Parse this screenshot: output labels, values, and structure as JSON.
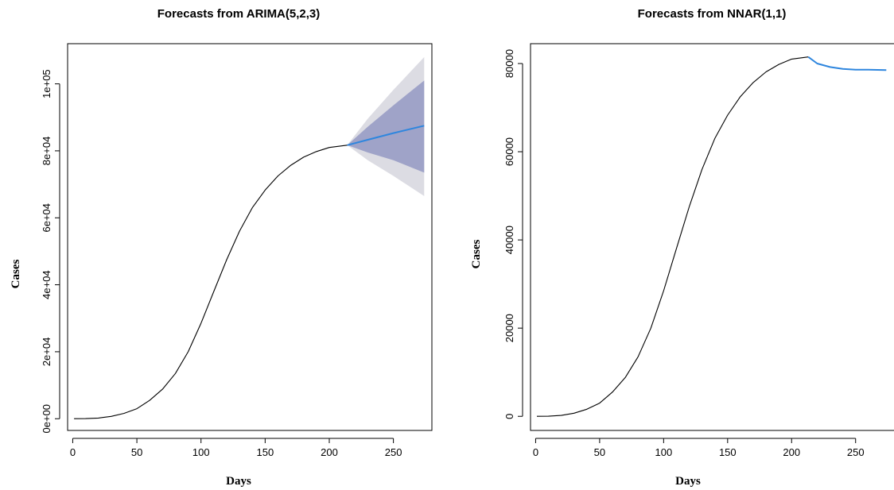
{
  "colors": {
    "history": "#000000",
    "forecast": "#2e86de",
    "pi80": "#9fa3c8",
    "pi95": "#dcdce3"
  },
  "chart_data": [
    {
      "type": "line",
      "title": "Forecasts from ARIMA(5,2,3)",
      "xlabel": "Days",
      "ylabel": "Cases",
      "xlim": [
        -4,
        280
      ],
      "ylim": [
        -3500,
        112000
      ],
      "xticks": [
        0,
        50,
        100,
        150,
        200,
        250
      ],
      "xtick_labels": [
        "0",
        "50",
        "100",
        "150",
        "200",
        "250"
      ],
      "yticks": [
        0,
        20000,
        40000,
        60000,
        80000,
        100000
      ],
      "ytick_labels": [
        "0e+00",
        "2e+04",
        "4e+04",
        "6e+04",
        "8e+04",
        "1e+05"
      ],
      "ytick_rotation": "vertical",
      "grid": false,
      "series": [
        {
          "role": "history",
          "x": [
            1,
            10,
            20,
            30,
            40,
            50,
            60,
            70,
            80,
            90,
            100,
            110,
            120,
            130,
            140,
            150,
            160,
            170,
            180,
            190,
            200,
            214
          ],
          "y": [
            0,
            30,
            200,
            700,
            1600,
            3000,
            5500,
            8800,
            13500,
            20000,
            28500,
            38000,
            47500,
            56000,
            63000,
            68300,
            72500,
            75700,
            78100,
            79800,
            81000,
            81700
          ]
        },
        {
          "role": "point-forecast",
          "x": [
            214,
            230,
            250,
            274
          ],
          "y": [
            81700,
            83300,
            85300,
            87500
          ]
        },
        {
          "role": "80% interval",
          "x": [
            214,
            230,
            250,
            274
          ],
          "lower": [
            81700,
            79500,
            77200,
            73500
          ],
          "upper": [
            81700,
            87200,
            93600,
            101000
          ]
        },
        {
          "role": "95% interval",
          "x": [
            214,
            230,
            250,
            274
          ],
          "lower": [
            81700,
            77200,
            72500,
            66500
          ],
          "upper": [
            81700,
            89600,
            98200,
            108000
          ]
        }
      ]
    },
    {
      "type": "line",
      "title": "Forecasts from NNAR(1,1)",
      "xlabel": "Days",
      "ylabel": "Cases",
      "xlim": [
        -4,
        280
      ],
      "ylim": [
        -3200,
        84500
      ],
      "xticks": [
        0,
        50,
        100,
        150,
        200,
        250
      ],
      "xtick_labels": [
        "0",
        "50",
        "100",
        "150",
        "200",
        "250"
      ],
      "yticks": [
        0,
        20000,
        40000,
        60000,
        80000
      ],
      "ytick_labels": [
        "0",
        "20000",
        "40000",
        "60000",
        "80000"
      ],
      "ytick_rotation": "vertical",
      "grid": false,
      "series": [
        {
          "role": "history",
          "x": [
            1,
            10,
            20,
            30,
            40,
            50,
            60,
            70,
            80,
            90,
            100,
            110,
            120,
            130,
            140,
            150,
            160,
            170,
            180,
            190,
            200,
            213
          ],
          "y": [
            0,
            30,
            200,
            700,
            1600,
            3000,
            5500,
            8800,
            13500,
            20000,
            28500,
            38000,
            47500,
            56000,
            63000,
            68300,
            72500,
            75700,
            78100,
            79800,
            81000,
            81500
          ]
        },
        {
          "role": "point-forecast",
          "x": [
            213,
            220,
            230,
            240,
            250,
            260,
            274
          ],
          "y": [
            81500,
            80000,
            79200,
            78800,
            78600,
            78600,
            78500
          ]
        }
      ]
    }
  ]
}
